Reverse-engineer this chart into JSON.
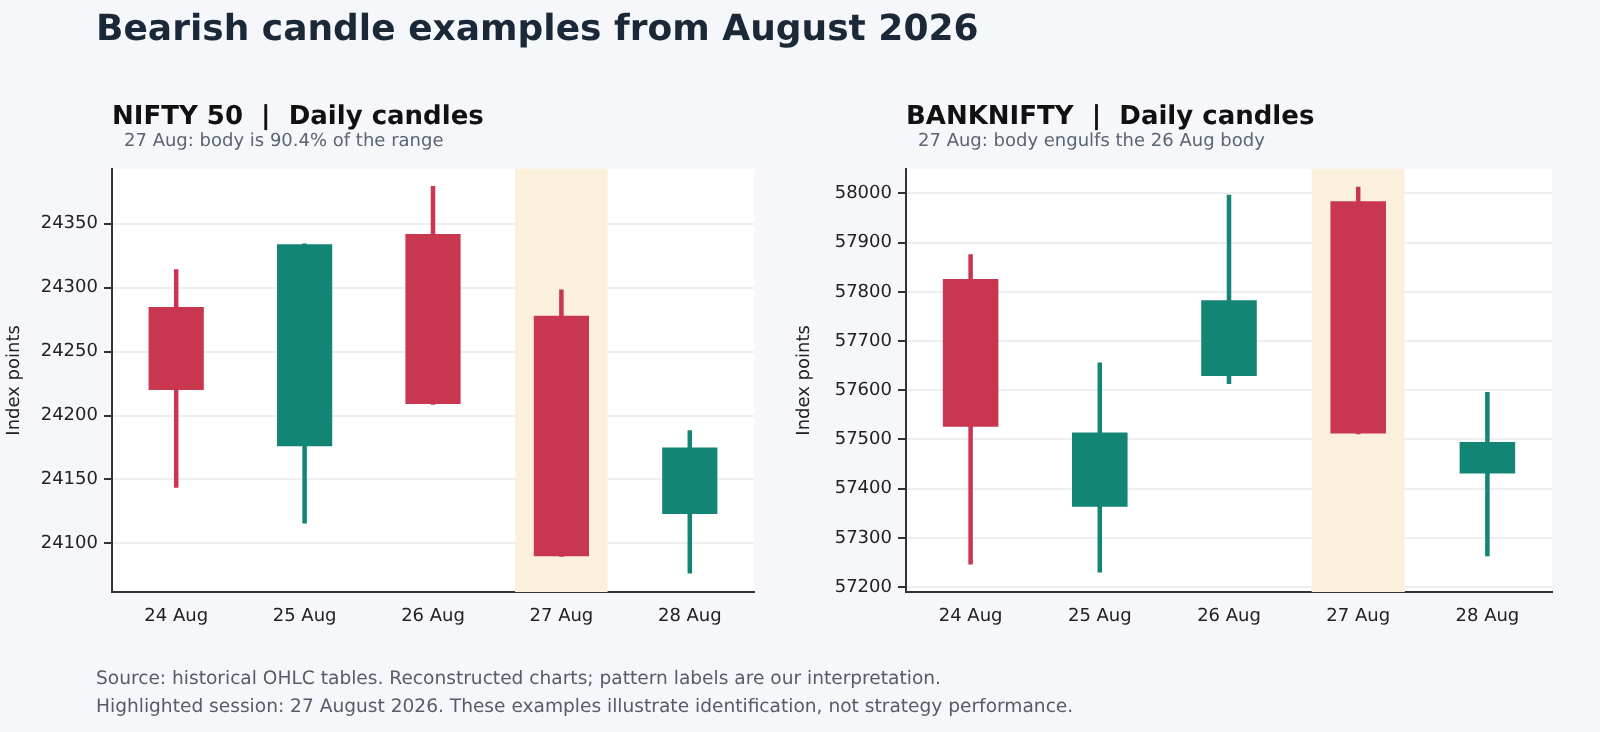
{
  "chart_data": [
    {
      "type": "other",
      "title": "Bearish candle examples from August 2026",
      "annotations": [
        "Source: historical OHLC tables. Reconstructed charts; pattern labels are our interpretation.",
        "Highlighted session: 27 August 2026. These examples illustrate identification, not strategy performance."
      ]
    },
    {
      "type": "candlestick",
      "title": "NIFTY 50  |  Daily candles",
      "subtitle": "27 Aug: body is 90.4% of the range",
      "ylabel": "Index points",
      "categories": [
        "24 Aug",
        "25 Aug",
        "26 Aug",
        "27 Aug",
        "28 Aug"
      ],
      "ohlc": [
        [
          24285,
          24314,
          24144,
          24220
        ],
        [
          24176,
          24334,
          24116,
          24334
        ],
        [
          24342,
          24379,
          24209,
          24209
        ],
        [
          24278,
          24298,
          24090,
          24090
        ],
        [
          24123,
          24188,
          24077,
          24175
        ]
      ],
      "colors": [
        "#c8374f",
        "#138575",
        "#c8374f",
        "#c8374f",
        "#138575"
      ],
      "ylim": [
        24062,
        24393
      ],
      "yticks": [
        24100,
        24150,
        24200,
        24250,
        24300,
        24350
      ],
      "grid": "y",
      "legend": false,
      "bands": [
        {
          "axis": "x",
          "from": "27 Aug",
          "to": "27 Aug",
          "color": "#fbf0dc"
        }
      ]
    },
    {
      "type": "candlestick",
      "title": "BANKNIFTY  |  Daily candles",
      "subtitle": "27 Aug: body engulfs the 26 Aug body",
      "ylabel": "Index points",
      "categories": [
        "24 Aug",
        "25 Aug",
        "26 Aug",
        "27 Aug",
        "28 Aug"
      ],
      "ohlc": [
        [
          57826,
          57875,
          57247,
          57526
        ],
        [
          57363,
          57655,
          57231,
          57514
        ],
        [
          57629,
          57996,
          57614,
          57783
        ],
        [
          57984,
          58012,
          57512,
          57512
        ],
        [
          57431,
          57595,
          57264,
          57495
        ]
      ],
      "colors": [
        "#c8374f",
        "#138575",
        "#138575",
        "#c8374f",
        "#138575"
      ],
      "ylim": [
        57190,
        58050
      ],
      "yticks": [
        57200,
        57300,
        57400,
        57500,
        57600,
        57700,
        57800,
        57900,
        58000
      ],
      "grid": "y",
      "legend": false,
      "bands": [
        {
          "axis": "x",
          "from": "27 Aug",
          "to": "27 Aug",
          "color": "#fbf0dc"
        }
      ]
    }
  ]
}
